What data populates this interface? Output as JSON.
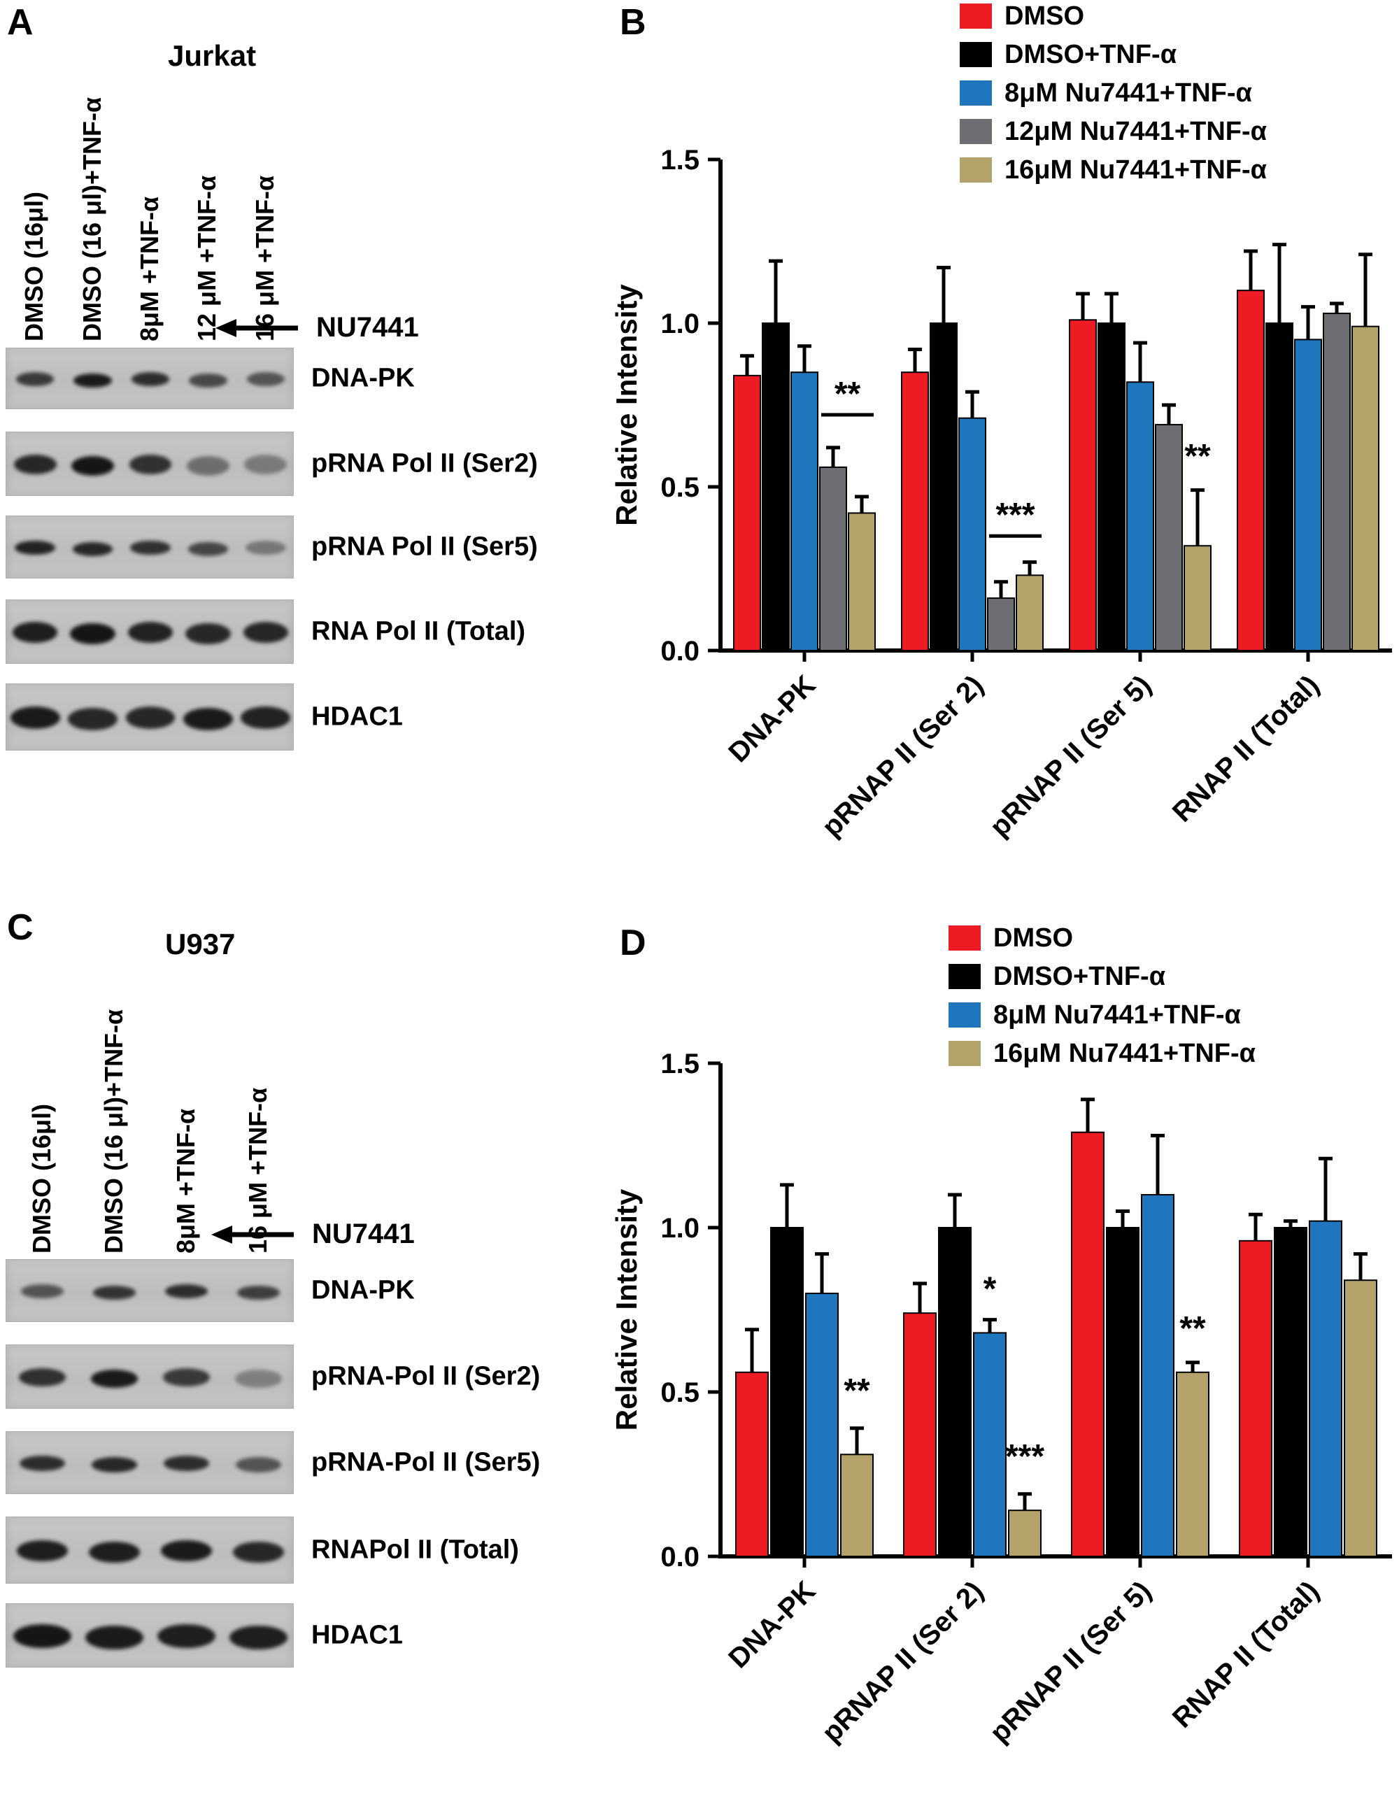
{
  "panel_a": {
    "label": "A",
    "title": "Jurkat",
    "arrow_label": "NU7441",
    "lane_labels": [
      "DMSO (16μl)",
      "DMSO (16 μl)+TNF-α",
      "8μM +TNF-α",
      "12 μM +TNF-α",
      "16 μM +TNF-α"
    ],
    "rows": [
      {
        "label": "DNA-PK",
        "band_height": 20,
        "band_width": 0.66,
        "bands": [
          0.75,
          0.92,
          0.82,
          0.66,
          0.6
        ]
      },
      {
        "label": "pRNA Pol II (Ser2)",
        "band_height": 28,
        "band_width": 0.74,
        "bands": [
          0.85,
          0.95,
          0.8,
          0.45,
          0.38
        ]
      },
      {
        "label": "pRNA Pol II (Ser5)",
        "band_height": 20,
        "band_width": 0.7,
        "bands": [
          0.88,
          0.85,
          0.8,
          0.68,
          0.4
        ]
      },
      {
        "label": "RNA Pol II (Total)",
        "band_height": 30,
        "band_width": 0.78,
        "bands": [
          0.9,
          0.95,
          0.88,
          0.85,
          0.85
        ]
      },
      {
        "label": "HDAC1",
        "band_height": 32,
        "band_width": 0.86,
        "bands": [
          0.92,
          0.85,
          0.85,
          0.92,
          0.88
        ]
      }
    ]
  },
  "panel_b": {
    "label": "B"
  },
  "panel_c": {
    "label": "C",
    "title": "U937",
    "arrow_label": "NU7441",
    "lane_labels": [
      "DMSO (16μl)",
      "DMSO (16 μl)+TNF-α",
      "8μM +TNF-α",
      "16 μM +TNF-α"
    ],
    "rows": [
      {
        "label": "DNA-PK",
        "band_height": 20,
        "band_width": 0.6,
        "bands": [
          0.6,
          0.78,
          0.82,
          0.72
        ]
      },
      {
        "label": "pRNA-Pol II (Ser2)",
        "band_height": 26,
        "band_width": 0.66,
        "bands": [
          0.8,
          0.92,
          0.75,
          0.35
        ]
      },
      {
        "label": "pRNA-Pol II (Ser5)",
        "band_height": 22,
        "band_width": 0.64,
        "bands": [
          0.82,
          0.85,
          0.82,
          0.6
        ]
      },
      {
        "label": "RNAPol II (Total)",
        "band_height": 30,
        "band_width": 0.7,
        "bands": [
          0.9,
          0.9,
          0.92,
          0.85
        ]
      },
      {
        "label": "HDAC1",
        "band_height": 34,
        "band_width": 0.8,
        "bands": [
          0.95,
          0.92,
          0.9,
          0.9
        ]
      }
    ]
  },
  "panel_d": {
    "label": "D"
  },
  "chart_data": [
    {
      "panel": "B",
      "type": "bar",
      "title": "",
      "xlabel": "",
      "ylabel": "Relative Intensity",
      "ylim": [
        0,
        1.5
      ],
      "yticks": [
        0,
        0.5,
        1,
        1.5
      ],
      "ytick_labels": [
        "0.0",
        "0.5",
        "1.0",
        "1.5"
      ],
      "legend_position": "top-right",
      "grid": false,
      "categories": [
        "DNA-PK",
        "pRNAP II (Ser 2)",
        "pRNAP II (Ser 5)",
        "RNAP II (Total)"
      ],
      "series": [
        {
          "name": "DMSO",
          "color": "#ed1c24",
          "values": [
            0.84,
            0.85,
            1.01,
            1.1
          ],
          "errors": [
            0.06,
            0.07,
            0.08,
            0.12
          ]
        },
        {
          "name": "DMSO+TNF-α",
          "color": "#000000",
          "values": [
            1.0,
            1.0,
            1.0,
            1.0
          ],
          "errors": [
            0.19,
            0.17,
            0.09,
            0.24
          ]
        },
        {
          "name": "8μM Nu7441+TNF-α",
          "color": "#1f76bc",
          "values": [
            0.85,
            0.71,
            0.82,
            0.95
          ],
          "errors": [
            0.08,
            0.08,
            0.12,
            0.1
          ]
        },
        {
          "name": "12μM Nu7441+TNF-α",
          "color": "#6d6e71",
          "values": [
            0.56,
            0.16,
            0.69,
            1.03
          ],
          "errors": [
            0.06,
            0.05,
            0.06,
            0.03
          ]
        },
        {
          "name": "16μM Nu7441+TNF-α",
          "color": "#b3a36b",
          "values": [
            0.42,
            0.23,
            0.32,
            0.99
          ],
          "errors": [
            0.05,
            0.04,
            0.17,
            0.22
          ]
        }
      ],
      "annotations": [
        {
          "text": "**",
          "category": 0,
          "series_span": [
            3,
            4
          ],
          "y": 0.72,
          "line": true
        },
        {
          "text": "***",
          "category": 1,
          "series_span": [
            3,
            4
          ],
          "y": 0.35,
          "line": true
        },
        {
          "text": "**",
          "category": 2,
          "series_span": [
            4,
            4
          ],
          "y": 0.56,
          "line": false
        }
      ]
    },
    {
      "panel": "D",
      "type": "bar",
      "title": "",
      "xlabel": "",
      "ylabel": "Relative Intensity",
      "ylim": [
        0,
        1.5
      ],
      "yticks": [
        0,
        0.5,
        1,
        1.5
      ],
      "ytick_labels": [
        "0.0",
        "0.5",
        "1.0",
        "1.5"
      ],
      "legend_position": "top-right",
      "grid": false,
      "categories": [
        "DNA-PK",
        "pRNAP II (Ser 2)",
        "pRNAP II (Ser 5)",
        "RNAP II (Total)"
      ],
      "series": [
        {
          "name": "DMSO",
          "color": "#ed1c24",
          "values": [
            0.56,
            0.74,
            1.29,
            0.96
          ],
          "errors": [
            0.13,
            0.09,
            0.1,
            0.08
          ]
        },
        {
          "name": "DMSO+TNF-α",
          "color": "#000000",
          "values": [
            1.0,
            1.0,
            1.0,
            1.0
          ],
          "errors": [
            0.13,
            0.1,
            0.05,
            0.02
          ]
        },
        {
          "name": "8μM Nu7441+TNF-α",
          "color": "#1f76bc",
          "values": [
            0.8,
            0.68,
            1.1,
            1.02
          ],
          "errors": [
            0.12,
            0.04,
            0.18,
            0.19
          ]
        },
        {
          "name": "16μM Nu7441+TNF-α",
          "color": "#b3a36b",
          "values": [
            0.31,
            0.14,
            0.56,
            0.84
          ],
          "errors": [
            0.08,
            0.05,
            0.03,
            0.08
          ]
        }
      ],
      "annotations": [
        {
          "text": "**",
          "category": 0,
          "series_span": [
            3,
            3
          ],
          "y": 0.47,
          "line": false
        },
        {
          "text": "*",
          "category": 1,
          "series_span": [
            2,
            2
          ],
          "y": 0.78,
          "line": false
        },
        {
          "text": "***",
          "category": 1,
          "series_span": [
            3,
            3
          ],
          "y": 0.27,
          "line": false
        },
        {
          "text": "**",
          "category": 2,
          "series_span": [
            3,
            3
          ],
          "y": 0.66,
          "line": false
        }
      ]
    }
  ]
}
